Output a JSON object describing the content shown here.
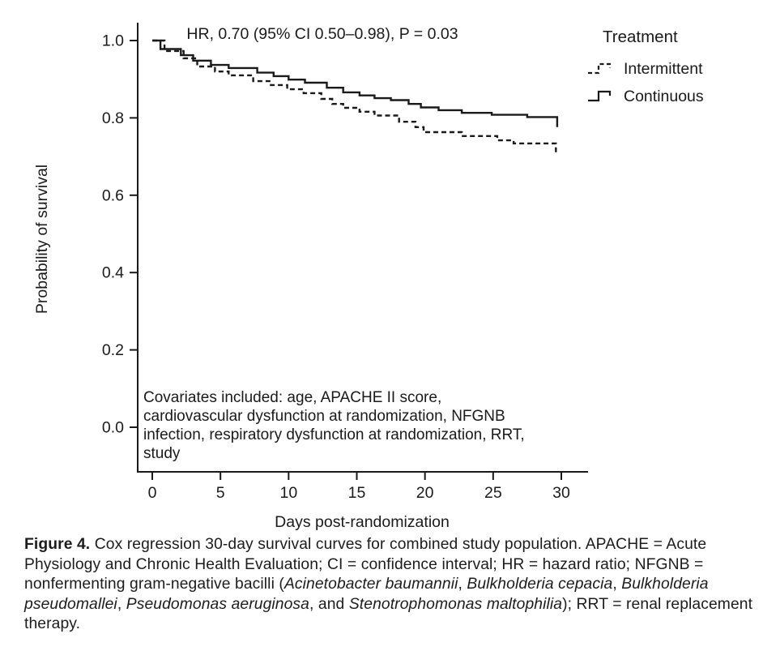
{
  "figure": {
    "annotation": "HR, 0.70 (95% CI 0.50–0.98), P = 0.03",
    "covariates_note_lines": [
      "Covariates included: age, APACHE II score,",
      "cardiovascular dysfunction at randomization, NFGNB",
      "infection, respiratory dysfunction at randomization, RRT,",
      "study"
    ],
    "legend": {
      "title": "Treatment",
      "items": [
        {
          "label": "Intermittent",
          "style": "dashed"
        },
        {
          "label": "Continuous",
          "style": "solid"
        }
      ]
    },
    "caption_segments": [
      {
        "text": "Figure 4.",
        "bold": true
      },
      {
        "text": " Cox regression 30-day survival curves for combined study population. APACHE = Acute Physiology and Chronic Health Evaluation; CI = confidence interval; HR = hazard ratio; NFGNB = nonfermenting gram-negative bacilli ("
      },
      {
        "text": "Acinetobacter baumannii",
        "italic": true
      },
      {
        "text": ", "
      },
      {
        "text": "Bulkholderia cepacia",
        "italic": true
      },
      {
        "text": ", "
      },
      {
        "text": "Bulkholderia pseudomallei",
        "italic": true
      },
      {
        "text": ", "
      },
      {
        "text": "Pseudomonas aeruginosa",
        "italic": true
      },
      {
        "text": ", and "
      },
      {
        "text": "Stenotrophomonas maltophilia",
        "italic": true
      },
      {
        "text": "); RRT = renal replacement therapy."
      }
    ]
  },
  "chart_data": {
    "type": "line",
    "subtype": "step-survival",
    "title": "",
    "xlabel": "Days post-randomization",
    "ylabel": "Probability of survival",
    "xlim": [
      0,
      30
    ],
    "ylim": [
      0.0,
      1.0
    ],
    "xticks": [
      0,
      5,
      10,
      15,
      20,
      25,
      30
    ],
    "yticks": [
      0.0,
      0.2,
      0.4,
      0.6,
      0.8,
      1.0
    ],
    "grid": false,
    "legend_position": "top-right-outside",
    "line_color": "#1a1a1a",
    "annotation": "HR, 0.70 (95% CI 0.50–0.98), P = 0.03",
    "series": [
      {
        "name": "Intermittent",
        "style": "dashed",
        "points": [
          [
            0,
            1.0
          ],
          [
            0.9,
            0.973
          ],
          [
            2.3,
            0.954
          ],
          [
            3.3,
            0.933
          ],
          [
            4.6,
            0.92
          ],
          [
            5.6,
            0.91
          ],
          [
            7.4,
            0.895
          ],
          [
            8.7,
            0.885
          ],
          [
            9.9,
            0.874
          ],
          [
            11.1,
            0.864
          ],
          [
            12.4,
            0.849
          ],
          [
            13.2,
            0.836
          ],
          [
            14.0,
            0.826
          ],
          [
            15.2,
            0.816
          ],
          [
            16.3,
            0.806
          ],
          [
            18.1,
            0.79
          ],
          [
            19.3,
            0.776
          ],
          [
            19.9,
            0.763
          ],
          [
            22.7,
            0.753
          ],
          [
            25.3,
            0.742
          ],
          [
            26.5,
            0.734
          ],
          [
            29.6,
            0.705
          ]
        ]
      },
      {
        "name": "Continuous",
        "style": "solid",
        "points": [
          [
            0,
            1.0
          ],
          [
            0.6,
            0.978
          ],
          [
            2.1,
            0.962
          ],
          [
            3.0,
            0.948
          ],
          [
            4.3,
            0.937
          ],
          [
            5.6,
            0.929
          ],
          [
            7.7,
            0.917
          ],
          [
            8.9,
            0.908
          ],
          [
            10.0,
            0.899
          ],
          [
            11.2,
            0.891
          ],
          [
            12.8,
            0.878
          ],
          [
            14.0,
            0.866
          ],
          [
            15.2,
            0.858
          ],
          [
            16.3,
            0.851
          ],
          [
            17.5,
            0.846
          ],
          [
            18.8,
            0.836
          ],
          [
            19.7,
            0.827
          ],
          [
            21.0,
            0.82
          ],
          [
            22.7,
            0.813
          ],
          [
            24.9,
            0.808
          ],
          [
            27.5,
            0.802
          ],
          [
            29.7,
            0.776
          ]
        ]
      }
    ]
  }
}
